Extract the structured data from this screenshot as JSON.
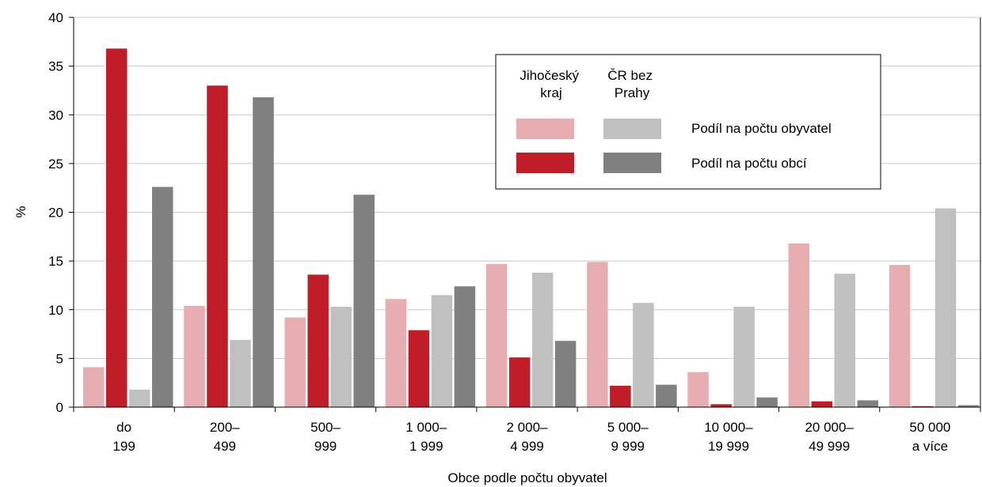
{
  "chart_data": {
    "type": "bar",
    "xlabel": "Obce podle počtu obyvatel",
    "ylabel": "%",
    "ylim": [
      0,
      40
    ],
    "yticks": [
      0,
      5,
      10,
      15,
      20,
      25,
      30,
      35,
      40
    ],
    "grid": true,
    "legend_position": "top-right",
    "categories": [
      [
        "do",
        "199"
      ],
      [
        "200–",
        "499"
      ],
      [
        "500–",
        "999"
      ],
      [
        "1 000–",
        "1 999"
      ],
      [
        "2 000–",
        "4 999"
      ],
      [
        "5 000–",
        "9 999"
      ],
      [
        "10 000–",
        "19 999"
      ],
      [
        "20 000–",
        "49 999"
      ],
      [
        "50 000",
        "a více"
      ]
    ],
    "series": [
      {
        "key": "jc_obyv",
        "color": "#e8adb1",
        "values": [
          4.1,
          10.4,
          9.2,
          11.1,
          14.7,
          14.9,
          3.6,
          16.8,
          14.6
        ]
      },
      {
        "key": "jc_obci",
        "color": "#c01d28",
        "values": [
          36.8,
          33.0,
          13.6,
          7.9,
          5.1,
          2.2,
          0.3,
          0.6,
          0.1
        ]
      },
      {
        "key": "cr_obyv",
        "color": "#c0c0c0",
        "values": [
          1.8,
          6.9,
          10.3,
          11.5,
          13.8,
          10.7,
          10.3,
          13.7,
          20.4
        ]
      },
      {
        "key": "cr_obci",
        "color": "#808080",
        "values": [
          22.6,
          31.8,
          21.8,
          12.4,
          6.8,
          2.3,
          1.0,
          0.7,
          0.2
        ]
      }
    ],
    "legend": {
      "col_jc": [
        "Jihočeský",
        "kraj"
      ],
      "col_cr": [
        "ČR bez",
        "Prahy"
      ],
      "row_obyv": "Podíl na počtu obyvatel",
      "row_obci": "Podíl na počtu obcí"
    }
  }
}
